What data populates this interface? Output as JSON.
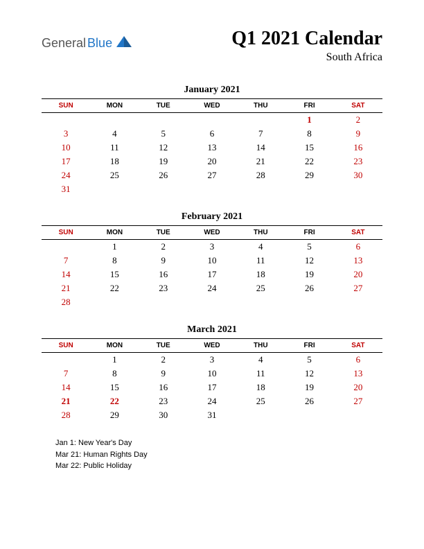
{
  "logo": {
    "general": "General",
    "blue": "Blue"
  },
  "title": "Q1 2021 Calendar",
  "subtitle": "South Africa",
  "colors": {
    "weekend": "#c00000",
    "text": "#000000",
    "logo_blue": "#2176c7",
    "logo_gray": "#555555",
    "background": "#ffffff"
  },
  "day_headers": [
    "SUN",
    "MON",
    "TUE",
    "WED",
    "THU",
    "FRI",
    "SAT"
  ],
  "months": [
    {
      "name": "January 2021",
      "weeks": [
        [
          null,
          null,
          null,
          null,
          null,
          {
            "d": 1,
            "h": true
          },
          {
            "d": 2,
            "w": true
          }
        ],
        [
          {
            "d": 3,
            "w": true
          },
          {
            "d": 4
          },
          {
            "d": 5
          },
          {
            "d": 6
          },
          {
            "d": 7
          },
          {
            "d": 8
          },
          {
            "d": 9,
            "w": true
          }
        ],
        [
          {
            "d": 10,
            "w": true
          },
          {
            "d": 11
          },
          {
            "d": 12
          },
          {
            "d": 13
          },
          {
            "d": 14
          },
          {
            "d": 15
          },
          {
            "d": 16,
            "w": true
          }
        ],
        [
          {
            "d": 17,
            "w": true
          },
          {
            "d": 18
          },
          {
            "d": 19
          },
          {
            "d": 20
          },
          {
            "d": 21
          },
          {
            "d": 22
          },
          {
            "d": 23,
            "w": true
          }
        ],
        [
          {
            "d": 24,
            "w": true
          },
          {
            "d": 25
          },
          {
            "d": 26
          },
          {
            "d": 27
          },
          {
            "d": 28
          },
          {
            "d": 29
          },
          {
            "d": 30,
            "w": true
          }
        ],
        [
          {
            "d": 31,
            "w": true
          },
          null,
          null,
          null,
          null,
          null,
          null
        ]
      ]
    },
    {
      "name": "February 2021",
      "weeks": [
        [
          null,
          {
            "d": 1
          },
          {
            "d": 2
          },
          {
            "d": 3
          },
          {
            "d": 4
          },
          {
            "d": 5
          },
          {
            "d": 6,
            "w": true
          }
        ],
        [
          {
            "d": 7,
            "w": true
          },
          {
            "d": 8
          },
          {
            "d": 9
          },
          {
            "d": 10
          },
          {
            "d": 11
          },
          {
            "d": 12
          },
          {
            "d": 13,
            "w": true
          }
        ],
        [
          {
            "d": 14,
            "w": true
          },
          {
            "d": 15
          },
          {
            "d": 16
          },
          {
            "d": 17
          },
          {
            "d": 18
          },
          {
            "d": 19
          },
          {
            "d": 20,
            "w": true
          }
        ],
        [
          {
            "d": 21,
            "w": true
          },
          {
            "d": 22
          },
          {
            "d": 23
          },
          {
            "d": 24
          },
          {
            "d": 25
          },
          {
            "d": 26
          },
          {
            "d": 27,
            "w": true
          }
        ],
        [
          {
            "d": 28,
            "w": true
          },
          null,
          null,
          null,
          null,
          null,
          null
        ]
      ]
    },
    {
      "name": "March 2021",
      "weeks": [
        [
          null,
          {
            "d": 1
          },
          {
            "d": 2
          },
          {
            "d": 3
          },
          {
            "d": 4
          },
          {
            "d": 5
          },
          {
            "d": 6,
            "w": true
          }
        ],
        [
          {
            "d": 7,
            "w": true
          },
          {
            "d": 8
          },
          {
            "d": 9
          },
          {
            "d": 10
          },
          {
            "d": 11
          },
          {
            "d": 12
          },
          {
            "d": 13,
            "w": true
          }
        ],
        [
          {
            "d": 14,
            "w": true
          },
          {
            "d": 15
          },
          {
            "d": 16
          },
          {
            "d": 17
          },
          {
            "d": 18
          },
          {
            "d": 19
          },
          {
            "d": 20,
            "w": true
          }
        ],
        [
          {
            "d": 21,
            "w": true,
            "h": true
          },
          {
            "d": 22,
            "h": true
          },
          {
            "d": 23
          },
          {
            "d": 24
          },
          {
            "d": 25
          },
          {
            "d": 26
          },
          {
            "d": 27,
            "w": true
          }
        ],
        [
          {
            "d": 28,
            "w": true
          },
          {
            "d": 29
          },
          {
            "d": 30
          },
          {
            "d": 31
          },
          null,
          null,
          null
        ]
      ]
    }
  ],
  "holidays": [
    "Jan 1: New Year's Day",
    "Mar 21: Human Rights Day",
    "Mar 22: Public Holiday"
  ]
}
